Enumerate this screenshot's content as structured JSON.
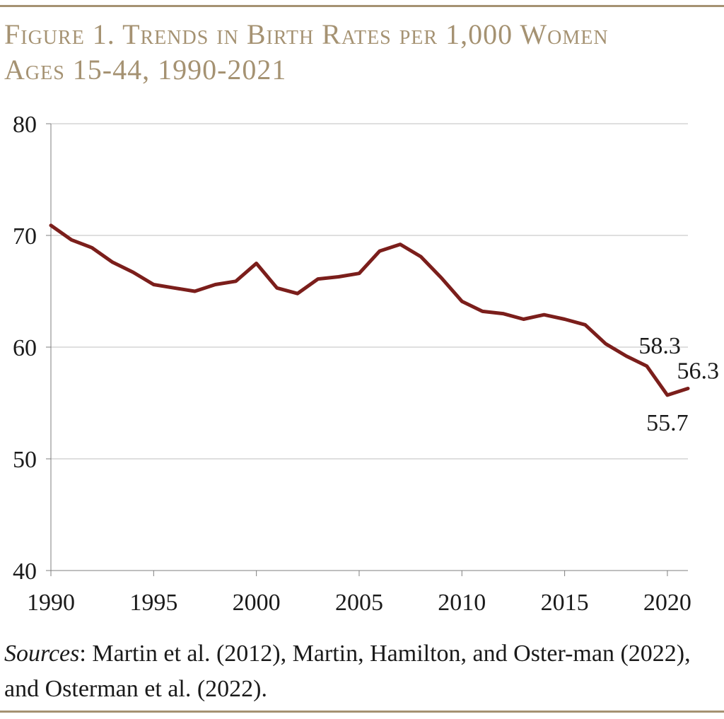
{
  "colors": {
    "accent": "#a59272",
    "line": "#7b1e1b",
    "grid": "#bfbfbf",
    "text": "#1a1a1a"
  },
  "title_line1": "Figure 1. Trends in Birth Rates per 1,000 Women",
  "title_line2": "Ages 15-44, 1990-2021",
  "source_label": "Sources",
  "source_text": ": Martin et al. (2012), Martin, Hamilton, and Oster-man (2022), and Osterman et al. (2022).",
  "chart_data": {
    "type": "line",
    "title": "Figure 1. Trends in Birth Rates per 1,000 Women Ages 15-44, 1990-2021",
    "xlabel": "",
    "ylabel": "",
    "xlim": [
      1990,
      2021
    ],
    "ylim": [
      40,
      80
    ],
    "x_ticks": [
      "1990",
      "1995",
      "2000",
      "2005",
      "2010",
      "2015",
      "2020"
    ],
    "y_ticks": [
      "40",
      "50",
      "60",
      "70",
      "80"
    ],
    "grid": "horizontal",
    "legend": "none",
    "x": [
      1990,
      1991,
      1992,
      1993,
      1994,
      1995,
      1996,
      1997,
      1998,
      1999,
      2000,
      2001,
      2002,
      2003,
      2004,
      2005,
      2006,
      2007,
      2008,
      2009,
      2010,
      2011,
      2012,
      2013,
      2014,
      2015,
      2016,
      2017,
      2018,
      2019,
      2020,
      2021
    ],
    "series": [
      {
        "values": [
          70.9,
          69.6,
          68.9,
          67.6,
          66.7,
          65.6,
          65.3,
          65.0,
          65.6,
          65.9,
          67.5,
          65.3,
          64.8,
          66.1,
          66.3,
          66.6,
          68.6,
          69.2,
          68.1,
          66.2,
          64.1,
          63.2,
          63.0,
          62.5,
          62.9,
          62.5,
          62.0,
          60.3,
          59.2,
          58.3,
          55.7,
          56.3
        ]
      }
    ],
    "annotations": [
      {
        "x": 2019,
        "y": 58.3,
        "text": "58.3"
      },
      {
        "x": 2020,
        "y": 55.7,
        "text": "55.7"
      },
      {
        "x": 2021,
        "y": 56.3,
        "text": "56.3"
      }
    ]
  }
}
